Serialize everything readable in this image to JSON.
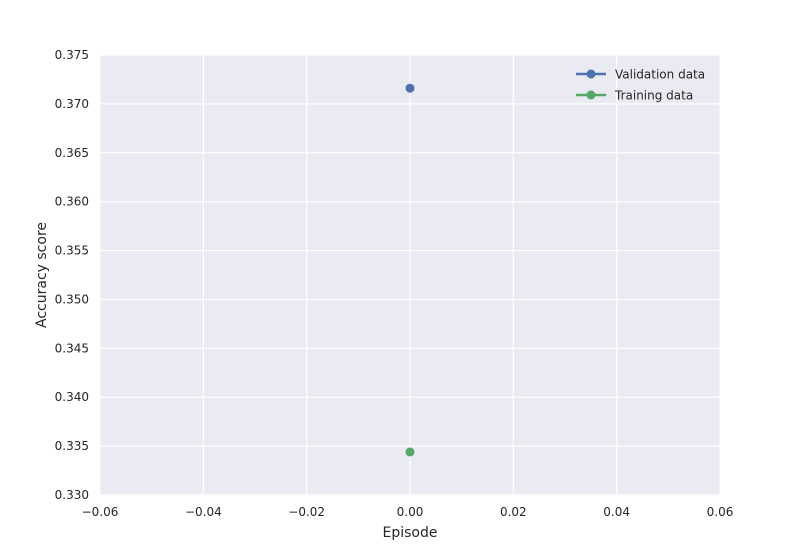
{
  "chart_data": {
    "type": "line",
    "title": "",
    "xlabel": "Episode",
    "ylabel": "Accuracy score",
    "xlim": [
      -0.06,
      0.06
    ],
    "ylim": [
      0.33,
      0.375
    ],
    "x_ticks": [
      "-0.06",
      "-0.04",
      "-0.02",
      "0.00",
      "0.02",
      "0.04",
      "0.06"
    ],
    "y_ticks": [
      "0.330",
      "0.335",
      "0.340",
      "0.345",
      "0.350",
      "0.355",
      "0.360",
      "0.365",
      "0.370",
      "0.375"
    ],
    "grid": true,
    "legend": "top-right",
    "series": [
      {
        "name": "Validation data",
        "x": [
          0.0
        ],
        "y": [
          0.3716
        ],
        "color": "#4c72b0"
      },
      {
        "name": "Training data",
        "x": [
          0.0
        ],
        "y": [
          0.3344
        ],
        "color": "#55a868"
      }
    ]
  }
}
